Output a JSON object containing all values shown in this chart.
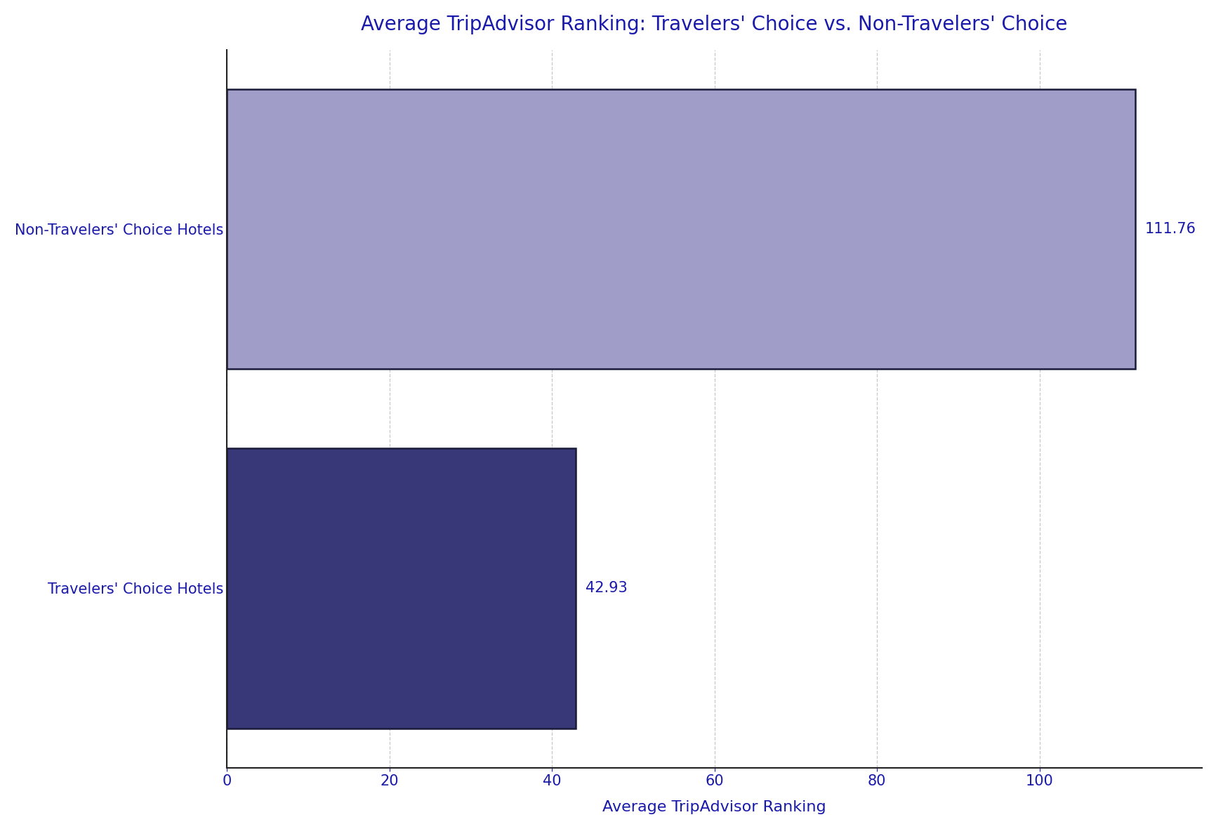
{
  "title": "Average TripAdvisor Ranking: Travelers' Choice vs. Non-Travelers' Choice",
  "xlabel": "Average TripAdvisor Ranking",
  "categories": [
    "Travelers' Choice Hotels",
    "Non-Travelers' Choice Hotels"
  ],
  "values": [
    42.93,
    111.76
  ],
  "bar_colors": [
    "#383878",
    "#a09ec8"
  ],
  "bar_edgecolors": [
    "#1a1a3a",
    "#1a1a3a"
  ],
  "value_labels": [
    "42.93",
    "111.76"
  ],
  "title_color": "#1a1aaa",
  "xlabel_color": "#1a1aaa",
  "tick_color": "#1a1aaa",
  "annotation_color": "#1a1aaa",
  "xlim": [
    0,
    120
  ],
  "xticks": [
    0,
    20,
    40,
    60,
    80,
    100
  ],
  "grid_color": "#bbbbbb",
  "title_fontsize": 20,
  "label_fontsize": 16,
  "tick_fontsize": 15,
  "annotation_fontsize": 15,
  "bar_height": 0.78,
  "background_color": "#ffffff"
}
